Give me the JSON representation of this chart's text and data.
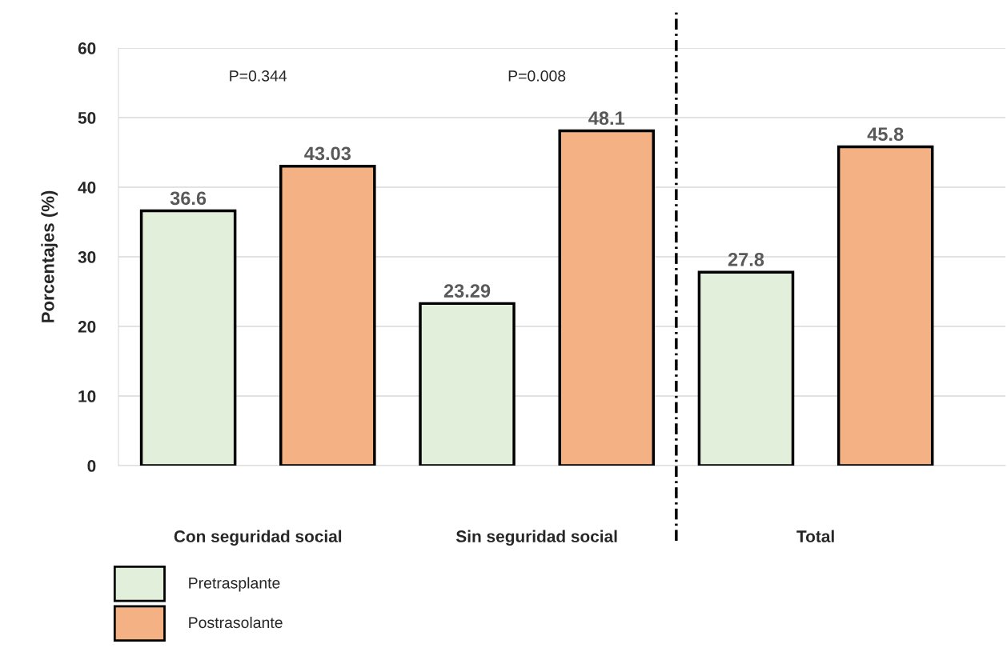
{
  "chart_data": {
    "type": "bar",
    "ylabel": "Porcentajes (%)",
    "categories": [
      "Con seguridad social",
      "Sin seguridad social",
      "Total"
    ],
    "series": [
      {
        "name": "Pretrasplante",
        "color": "#e2efda",
        "values": [
          36.6,
          23.29,
          27.8
        ]
      },
      {
        "name": "Postrasolante",
        "color": "#f4b183",
        "values": [
          43.03,
          48.1,
          45.8
        ]
      }
    ],
    "ylim": [
      0,
      60
    ],
    "yticks": [
      0,
      10,
      20,
      30,
      40,
      50,
      60
    ],
    "grid": "y",
    "data_labels": true,
    "legend": "bottom left",
    "annotations": [
      "P=0.344",
      "P=0.008"
    ]
  }
}
